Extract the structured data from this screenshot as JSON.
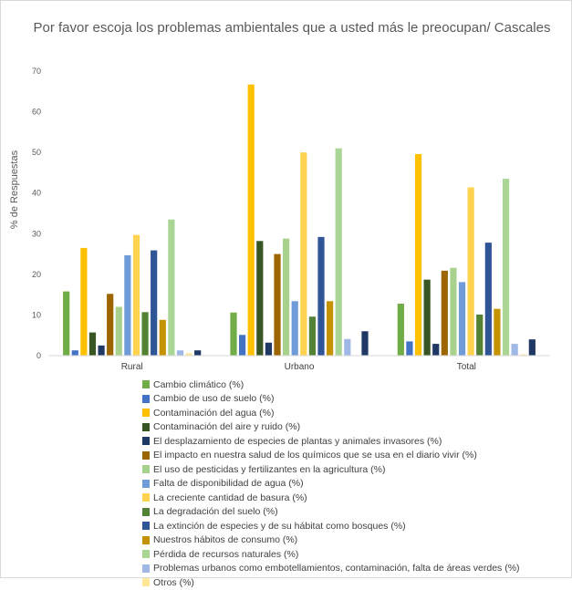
{
  "chart_data": {
    "type": "bar",
    "title": "Por favor escoja los problemas ambientales que a usted más le preocupan/ Cascales",
    "ylabel": "% de Respuestas",
    "xlabel": "",
    "ylim": [
      0,
      70
    ],
    "yticks": [
      0,
      10,
      20,
      30,
      40,
      50,
      60,
      70
    ],
    "grid": false,
    "legend_position": "bottom",
    "categories": [
      "Rural",
      "Urbano",
      "Total"
    ],
    "series": [
      {
        "name": "Cambio climático (%)",
        "color": "#70ad47",
        "values": [
          15.8,
          10.6,
          12.8
        ]
      },
      {
        "name": "Cambio de uso de suelo (%)",
        "color": "#4472c4",
        "values": [
          1.3,
          5.1,
          3.5
        ]
      },
      {
        "name": "Contaminación del agua (%)",
        "color": "#ffc000",
        "values": [
          26.5,
          66.7,
          49.6
        ]
      },
      {
        "name": "Contaminación del aire y ruido (%)",
        "color": "#375623",
        "values": [
          5.7,
          28.2,
          18.7
        ]
      },
      {
        "name": "El desplazamiento de especies de plantas y animales invasores (%)",
        "color": "#203864",
        "values": [
          2.5,
          3.2,
          2.9
        ]
      },
      {
        "name": "El impacto en nuestra salud de los químicos que se usa en el diario vivir (%)",
        "color": "#9c6500",
        "values": [
          15.2,
          25.0,
          20.9
        ]
      },
      {
        "name": "El uso de pesticidas y fertilizantes en la agricultura (%)",
        "color": "#a9d18e",
        "values": [
          12.0,
          28.8,
          21.6
        ]
      },
      {
        "name": "Falta de disponibilidad de agua (%)",
        "color": "#6f9bd8",
        "values": [
          24.7,
          13.4,
          18.1
        ]
      },
      {
        "name": "La creciente cantidad de basura (%)",
        "color": "#ffd34f",
        "values": [
          29.7,
          50.0,
          41.4
        ]
      },
      {
        "name": "La degradación del suelo (%)",
        "color": "#548235",
        "values": [
          10.7,
          9.6,
          10.1
        ]
      },
      {
        "name": "La extinción de especies y de su hábitat como bosques (%)",
        "color": "#2f5597",
        "values": [
          25.9,
          29.2,
          27.8
        ]
      },
      {
        "name": "Nuestros hábitos de consumo (%)",
        "color": "#c59200",
        "values": [
          8.8,
          13.4,
          11.5
        ]
      },
      {
        "name": "Pérdida de recursos naturales (%)",
        "color": "#a9d595",
        "values": [
          33.5,
          51.0,
          43.5
        ]
      },
      {
        "name": "Problemas urbanos como embotellamientos, contaminación, falta de áreas verdes (%)",
        "color": "#9fb8e6",
        "values": [
          1.3,
          4.1,
          2.9
        ]
      },
      {
        "name": "Otros (%)",
        "color": "#ffe699",
        "values": [
          0.6,
          0.0,
          0.3
        ]
      },
      {
        "name": "",
        "color": "#1f3864",
        "values": [
          1.3,
          6.0,
          4.0
        ]
      }
    ]
  }
}
